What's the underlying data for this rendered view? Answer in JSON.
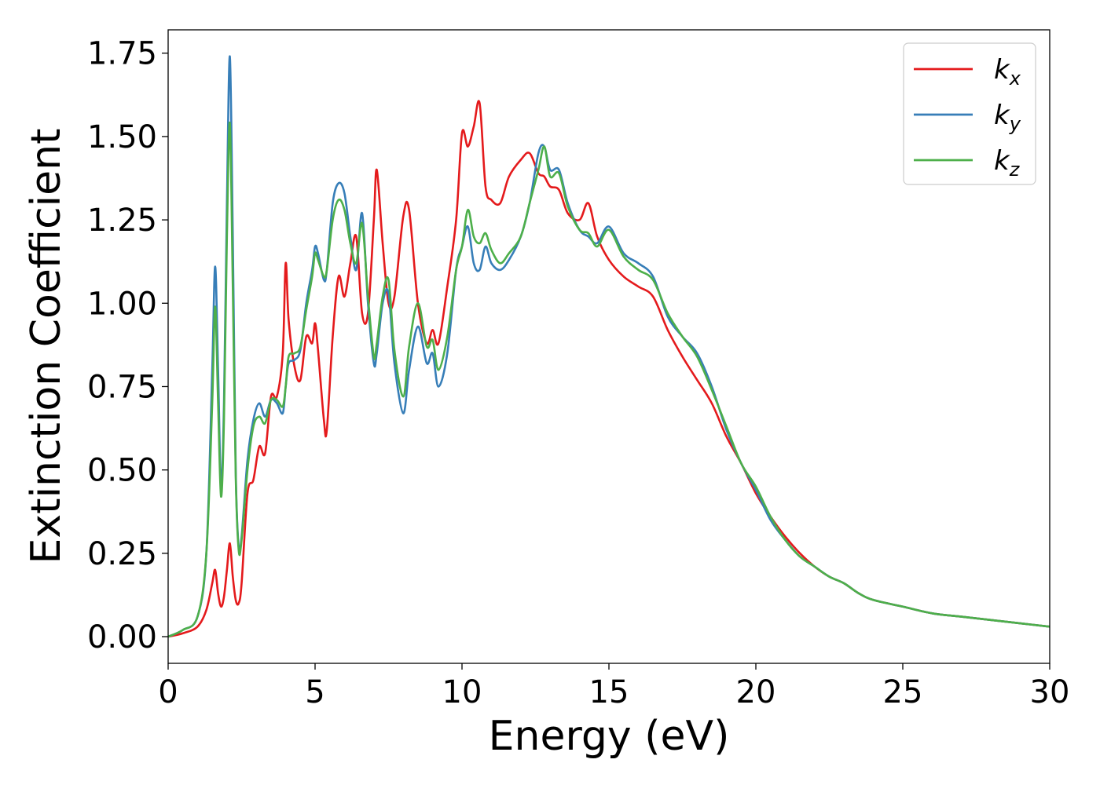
{
  "chart_data": {
    "type": "line",
    "title": "",
    "xlabel": "Energy (eV)",
    "ylabel": "Extinction Coefficient",
    "xlim": [
      0,
      30
    ],
    "ylim": [
      -0.08,
      1.82
    ],
    "xticks": [
      0,
      5,
      10,
      15,
      20,
      25,
      30
    ],
    "xtick_labels": [
      "0",
      "5",
      "10",
      "15",
      "20",
      "25",
      "30"
    ],
    "yticks": [
      0,
      0.25,
      0.5,
      0.75,
      1.0,
      1.25,
      1.5,
      1.75
    ],
    "ytick_labels": [
      "0.00",
      "0.25",
      "0.50",
      "0.75",
      "1.00",
      "1.25",
      "1.50",
      "1.75"
    ],
    "grid": false,
    "legend_position": "top-right",
    "series": [
      {
        "name": "k_x",
        "legend_base": "k",
        "legend_sub": "x",
        "color": "#e41a1c",
        "x": [
          0,
          0.5,
          1.0,
          1.3,
          1.5,
          1.6,
          1.7,
          1.8,
          1.9,
          2.0,
          2.1,
          2.2,
          2.3,
          2.4,
          2.5,
          2.7,
          2.9,
          3.1,
          3.3,
          3.5,
          3.7,
          3.9,
          4.0,
          4.1,
          4.3,
          4.5,
          4.7,
          4.9,
          5.0,
          5.1,
          5.3,
          5.4,
          5.6,
          5.8,
          6.0,
          6.2,
          6.4,
          6.6,
          6.8,
          7.0,
          7.1,
          7.3,
          7.5,
          7.7,
          8.0,
          8.2,
          8.5,
          8.8,
          9.0,
          9.2,
          9.5,
          9.8,
          10.0,
          10.2,
          10.4,
          10.6,
          10.8,
          11.0,
          11.3,
          11.6,
          12.0,
          12.3,
          12.6,
          12.8,
          13.0,
          13.3,
          13.6,
          14.0,
          14.3,
          14.6,
          15.0,
          15.5,
          16.0,
          16.5,
          17.0,
          17.5,
          18.0,
          18.5,
          19.0,
          19.5,
          20.0,
          20.5,
          21.0,
          21.5,
          22.0,
          22.5,
          23.0,
          23.5,
          24.0,
          25.0,
          26.0,
          27.0,
          28.0,
          29.0,
          30.0
        ],
        "y": [
          0,
          0.01,
          0.03,
          0.08,
          0.16,
          0.2,
          0.13,
          0.09,
          0.12,
          0.2,
          0.28,
          0.18,
          0.11,
          0.1,
          0.16,
          0.43,
          0.47,
          0.57,
          0.55,
          0.72,
          0.72,
          0.85,
          1.12,
          0.95,
          0.81,
          0.77,
          0.9,
          0.88,
          0.94,
          0.86,
          0.65,
          0.62,
          0.9,
          1.08,
          1.02,
          1.12,
          1.2,
          0.97,
          0.97,
          1.25,
          1.4,
          1.18,
          1.0,
          1.02,
          1.26,
          1.28,
          1.0,
          0.88,
          0.92,
          0.88,
          1.05,
          1.25,
          1.51,
          1.47,
          1.53,
          1.6,
          1.35,
          1.31,
          1.3,
          1.38,
          1.43,
          1.45,
          1.39,
          1.38,
          1.35,
          1.34,
          1.27,
          1.25,
          1.3,
          1.2,
          1.13,
          1.08,
          1.05,
          1.02,
          0.92,
          0.84,
          0.77,
          0.7,
          0.6,
          0.52,
          0.43,
          0.36,
          0.3,
          0.25,
          0.21,
          0.18,
          0.16,
          0.13,
          0.11,
          0.09,
          0.07,
          0.06,
          0.05,
          0.04,
          0.03
        ]
      },
      {
        "name": "k_y",
        "legend_base": "k",
        "legend_sub": "y",
        "color": "#377eb8",
        "x": [
          0,
          0.5,
          1.0,
          1.3,
          1.5,
          1.6,
          1.7,
          1.8,
          1.9,
          2.0,
          2.1,
          2.2,
          2.3,
          2.4,
          2.5,
          2.7,
          2.9,
          3.1,
          3.3,
          3.5,
          3.7,
          3.9,
          4.0,
          4.1,
          4.3,
          4.5,
          4.7,
          4.9,
          5.0,
          5.1,
          5.3,
          5.4,
          5.6,
          5.8,
          6.0,
          6.2,
          6.4,
          6.6,
          6.8,
          7.0,
          7.1,
          7.3,
          7.5,
          7.7,
          8.0,
          8.2,
          8.5,
          8.8,
          9.0,
          9.2,
          9.5,
          9.8,
          10.0,
          10.2,
          10.4,
          10.6,
          10.8,
          11.0,
          11.3,
          11.6,
          12.0,
          12.3,
          12.6,
          12.8,
          13.0,
          13.3,
          13.6,
          14.0,
          14.3,
          14.6,
          15.0,
          15.5,
          16.0,
          16.5,
          17.0,
          17.5,
          18.0,
          18.5,
          19.0,
          19.5,
          20.0,
          20.5,
          21.0,
          21.5,
          22.0,
          22.5,
          23.0,
          23.5,
          24.0,
          25.0,
          26.0,
          27.0,
          28.0,
          29.0,
          30.0
        ],
        "y": [
          0,
          0.02,
          0.06,
          0.25,
          0.8,
          1.11,
          0.8,
          0.45,
          0.7,
          1.3,
          1.74,
          1.2,
          0.5,
          0.27,
          0.3,
          0.53,
          0.65,
          0.7,
          0.66,
          0.71,
          0.7,
          0.67,
          0.75,
          0.82,
          0.83,
          0.86,
          1.0,
          1.1,
          1.17,
          1.15,
          1.07,
          1.1,
          1.3,
          1.36,
          1.33,
          1.2,
          1.1,
          1.27,
          1.0,
          0.82,
          0.85,
          1.0,
          1.03,
          0.82,
          0.67,
          0.8,
          0.93,
          0.82,
          0.85,
          0.75,
          0.85,
          1.1,
          1.17,
          1.23,
          1.12,
          1.1,
          1.17,
          1.12,
          1.1,
          1.13,
          1.2,
          1.3,
          1.45,
          1.47,
          1.4,
          1.4,
          1.3,
          1.22,
          1.2,
          1.18,
          1.23,
          1.15,
          1.12,
          1.08,
          0.96,
          0.9,
          0.85,
          0.75,
          0.62,
          0.52,
          0.44,
          0.35,
          0.29,
          0.24,
          0.21,
          0.18,
          0.16,
          0.13,
          0.11,
          0.09,
          0.07,
          0.06,
          0.05,
          0.04,
          0.03
        ]
      },
      {
        "name": "k_z",
        "legend_base": "k",
        "legend_sub": "z",
        "color": "#4daf4a",
        "x": [
          0,
          0.5,
          1.0,
          1.3,
          1.5,
          1.6,
          1.7,
          1.8,
          1.9,
          2.0,
          2.1,
          2.2,
          2.3,
          2.4,
          2.5,
          2.7,
          2.9,
          3.1,
          3.3,
          3.5,
          3.7,
          3.9,
          4.0,
          4.1,
          4.3,
          4.5,
          4.7,
          4.9,
          5.0,
          5.1,
          5.3,
          5.4,
          5.6,
          5.8,
          6.0,
          6.2,
          6.4,
          6.6,
          6.8,
          7.0,
          7.1,
          7.3,
          7.5,
          7.7,
          8.0,
          8.2,
          8.5,
          8.8,
          9.0,
          9.2,
          9.5,
          9.8,
          10.0,
          10.2,
          10.4,
          10.6,
          10.8,
          11.0,
          11.3,
          11.6,
          12.0,
          12.3,
          12.6,
          12.8,
          13.0,
          13.3,
          13.6,
          14.0,
          14.3,
          14.6,
          15.0,
          15.5,
          16.0,
          16.5,
          17.0,
          17.5,
          18.0,
          18.5,
          19.0,
          19.5,
          20.0,
          20.5,
          21.0,
          21.5,
          22.0,
          22.5,
          23.0,
          23.5,
          24.0,
          25.0,
          26.0,
          27.0,
          28.0,
          29.0,
          30.0
        ],
        "y": [
          0,
          0.02,
          0.06,
          0.25,
          0.7,
          0.99,
          0.7,
          0.42,
          0.65,
          1.2,
          1.54,
          1.05,
          0.48,
          0.26,
          0.29,
          0.5,
          0.63,
          0.66,
          0.64,
          0.71,
          0.71,
          0.69,
          0.75,
          0.84,
          0.85,
          0.87,
          0.98,
          1.08,
          1.15,
          1.13,
          1.08,
          1.1,
          1.25,
          1.31,
          1.28,
          1.18,
          1.12,
          1.24,
          1.02,
          0.84,
          0.88,
          1.02,
          1.07,
          0.86,
          0.72,
          0.87,
          1.0,
          0.87,
          0.89,
          0.8,
          0.9,
          1.1,
          1.17,
          1.28,
          1.2,
          1.18,
          1.21,
          1.16,
          1.12,
          1.15,
          1.2,
          1.3,
          1.4,
          1.47,
          1.38,
          1.39,
          1.29,
          1.22,
          1.21,
          1.17,
          1.22,
          1.14,
          1.1,
          1.07,
          0.97,
          0.9,
          0.84,
          0.74,
          0.63,
          0.52,
          0.45,
          0.36,
          0.29,
          0.24,
          0.21,
          0.18,
          0.16,
          0.13,
          0.11,
          0.09,
          0.07,
          0.06,
          0.05,
          0.04,
          0.03
        ]
      }
    ]
  }
}
